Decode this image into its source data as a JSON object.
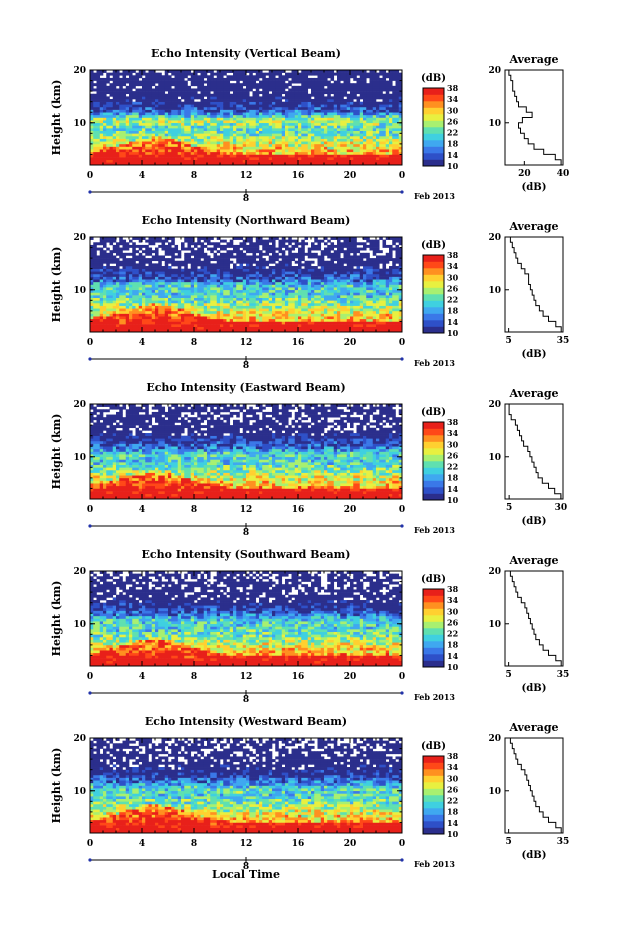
{
  "chart_data": [
    {
      "type": "heatmap",
      "title": "Echo Intensity (Vertical Beam)",
      "ylabel": "Height (km)",
      "x_ticks": [
        "0",
        "4",
        "8",
        "12",
        "16",
        "20",
        "0"
      ],
      "y_ticks": [
        "10",
        "20"
      ],
      "xlim": [
        0,
        24
      ],
      "ylim": [
        2,
        20
      ],
      "date_ticks": [
        "8"
      ],
      "date_label": "Feb 2013",
      "colorbar": {
        "label": "(dB)",
        "ticks": [
          "10",
          "14",
          "18",
          "22",
          "26",
          "30",
          "34",
          "38"
        ],
        "range": [
          10,
          38
        ]
      },
      "profile": {
        "title": "Average",
        "xlabel": "(dB)",
        "x_ticks": [
          "20",
          "40"
        ],
        "xlim": [
          10,
          40
        ],
        "y_ticks": [
          "10",
          "20"
        ],
        "ylim": [
          2,
          20
        ],
        "height_km": [
          2,
          3,
          4,
          5,
          6,
          7,
          8,
          9,
          10,
          11,
          12,
          13,
          14,
          15,
          16,
          17,
          18,
          19,
          20
        ],
        "values_db": [
          39,
          36,
          30,
          25,
          22,
          20,
          18,
          17,
          19,
          24,
          21,
          17,
          16,
          15,
          14,
          14,
          13,
          12,
          12
        ]
      }
    },
    {
      "type": "heatmap",
      "title": "Echo Intensity (Northward Beam)",
      "ylabel": "Height (km)",
      "x_ticks": [
        "0",
        "4",
        "8",
        "12",
        "16",
        "20",
        "0"
      ],
      "y_ticks": [
        "10",
        "20"
      ],
      "xlim": [
        0,
        24
      ],
      "ylim": [
        2,
        20
      ],
      "date_ticks": [
        "8"
      ],
      "date_label": "Feb 2013",
      "colorbar": {
        "label": "(dB)",
        "ticks": [
          "10",
          "14",
          "18",
          "22",
          "26",
          "30",
          "34",
          "38"
        ],
        "range": [
          10,
          38
        ]
      },
      "profile": {
        "title": "Average",
        "xlabel": "(dB)",
        "x_ticks": [
          "5",
          "35"
        ],
        "xlim": [
          3,
          35
        ],
        "y_ticks": [
          "10",
          "20"
        ],
        "ylim": [
          2,
          20
        ],
        "height_km": [
          2,
          3,
          4,
          5,
          6,
          7,
          8,
          9,
          10,
          11,
          12,
          13,
          14,
          15,
          16,
          17,
          18,
          19,
          20
        ],
        "values_db": [
          34,
          31,
          27,
          24,
          22,
          20,
          19,
          18,
          17,
          16,
          16,
          14,
          12,
          10,
          9,
          8,
          7,
          6,
          5
        ]
      }
    },
    {
      "type": "heatmap",
      "title": "Echo Intensity (Eastward Beam)",
      "ylabel": "Height (km)",
      "x_ticks": [
        "0",
        "4",
        "8",
        "12",
        "16",
        "20",
        "0"
      ],
      "y_ticks": [
        "10",
        "20"
      ],
      "xlim": [
        0,
        24
      ],
      "ylim": [
        2,
        20
      ],
      "date_ticks": [
        "8"
      ],
      "date_label": "Feb 2013",
      "colorbar": {
        "label": "(dB)",
        "ticks": [
          "10",
          "14",
          "18",
          "22",
          "26",
          "30",
          "34",
          "38"
        ],
        "range": [
          10,
          38
        ]
      },
      "profile": {
        "title": "Average",
        "xlabel": "(dB)",
        "x_ticks": [
          "5",
          "30"
        ],
        "xlim": [
          3,
          31
        ],
        "y_ticks": [
          "10",
          "20"
        ],
        "ylim": [
          2,
          20
        ],
        "height_km": [
          2,
          3,
          4,
          5,
          6,
          7,
          8,
          9,
          10,
          11,
          12,
          13,
          14,
          15,
          16,
          17,
          18,
          19,
          20
        ],
        "values_db": [
          30,
          27,
          24,
          21,
          19,
          18,
          17,
          16,
          15,
          14,
          12,
          11,
          10,
          9,
          8,
          6,
          5,
          5,
          4
        ]
      }
    },
    {
      "type": "heatmap",
      "title": "Echo Intensity (Southward Beam)",
      "ylabel": "Height (km)",
      "x_ticks": [
        "0",
        "4",
        "8",
        "12",
        "16",
        "20",
        "0"
      ],
      "y_ticks": [
        "10",
        "20"
      ],
      "xlim": [
        0,
        24
      ],
      "ylim": [
        2,
        20
      ],
      "date_ticks": [
        "8"
      ],
      "date_label": "Feb 2013",
      "colorbar": {
        "label": "(dB)",
        "ticks": [
          "10",
          "14",
          "18",
          "22",
          "26",
          "30",
          "34",
          "38"
        ],
        "range": [
          10,
          38
        ]
      },
      "profile": {
        "title": "Average",
        "xlabel": "(dB)",
        "x_ticks": [
          "5",
          "35"
        ],
        "xlim": [
          3,
          35
        ],
        "y_ticks": [
          "10",
          "20"
        ],
        "ylim": [
          2,
          20
        ],
        "height_km": [
          2,
          3,
          4,
          5,
          6,
          7,
          8,
          9,
          10,
          11,
          12,
          13,
          14,
          15,
          16,
          17,
          18,
          19,
          20
        ],
        "values_db": [
          34,
          31,
          27,
          24,
          22,
          20,
          19,
          18,
          17,
          16,
          15,
          14,
          12,
          10,
          9,
          8,
          7,
          6,
          5
        ]
      }
    },
    {
      "type": "heatmap",
      "title": "Echo Intensity (Westward Beam)",
      "ylabel": "Height (km)",
      "x_ticks": [
        "0",
        "4",
        "8",
        "12",
        "16",
        "20",
        "0"
      ],
      "y_ticks": [
        "10",
        "20"
      ],
      "xlim": [
        0,
        24
      ],
      "ylim": [
        2,
        20
      ],
      "date_ticks": [
        "8"
      ],
      "date_label": "Feb 2013",
      "colorbar": {
        "label": "(dB)",
        "ticks": [
          "10",
          "14",
          "18",
          "22",
          "26",
          "30",
          "34",
          "38"
        ],
        "range": [
          10,
          38
        ]
      },
      "profile": {
        "title": "Average",
        "xlabel": "(dB)",
        "x_ticks": [
          "5",
          "35"
        ],
        "xlim": [
          3,
          35
        ],
        "y_ticks": [
          "10",
          "20"
        ],
        "ylim": [
          2,
          20
        ],
        "height_km": [
          2,
          3,
          4,
          5,
          6,
          7,
          8,
          9,
          10,
          11,
          12,
          13,
          14,
          15,
          16,
          17,
          18,
          19,
          20
        ],
        "values_db": [
          34,
          31,
          27,
          24,
          22,
          20,
          19,
          18,
          17,
          16,
          15,
          14,
          12,
          10,
          9,
          8,
          7,
          6,
          5
        ]
      }
    }
  ],
  "figure": {
    "xlabel": "Local Time",
    "colormap": [
      "#2b2e8c",
      "#2e50c8",
      "#3a78e8",
      "#3fa8f0",
      "#3fd0e0",
      "#5fe0b0",
      "#a8f070",
      "#e8f040",
      "#ffd030",
      "#ff9020",
      "#ff4818",
      "#e8201a"
    ]
  }
}
